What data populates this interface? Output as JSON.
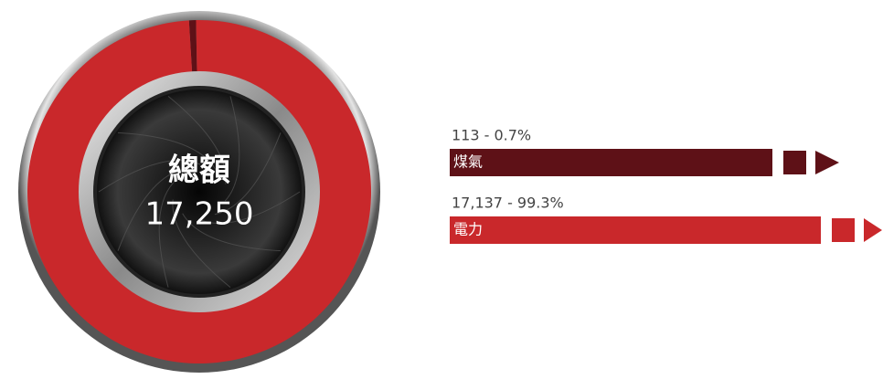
{
  "chart_data": {
    "type": "donut",
    "center_title": "總額",
    "total": {
      "value": 17250,
      "label": "17,250"
    },
    "categories": [
      "煤氣",
      "電力"
    ],
    "values": [
      113,
      17137
    ],
    "value_labels": [
      "113 - 0.7%",
      "17,137 - 99.3%"
    ],
    "colors": [
      "#5e1117",
      "#c9282b"
    ]
  }
}
